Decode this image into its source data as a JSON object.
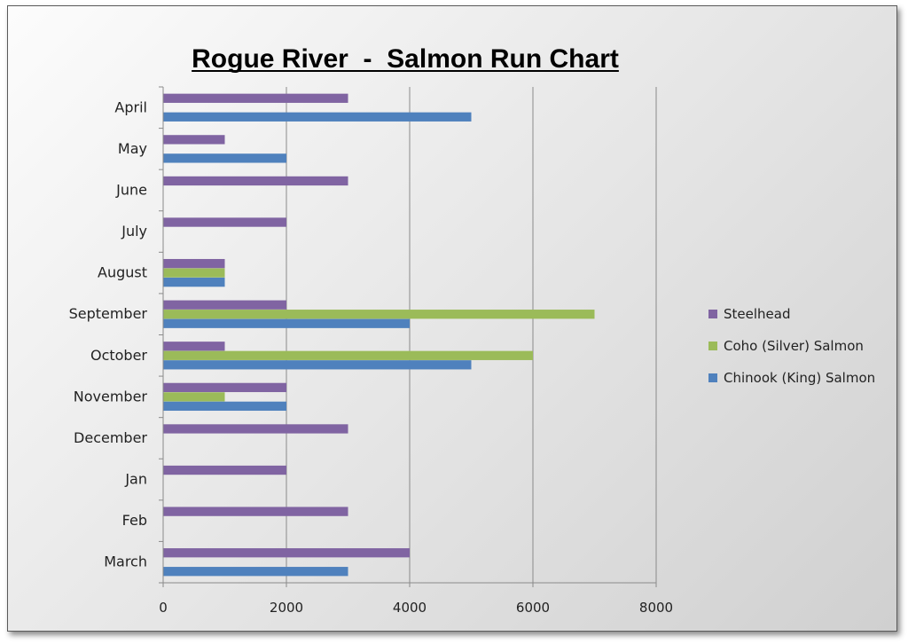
{
  "chart_data": {
    "type": "bar",
    "orientation": "horizontal",
    "title": "Rogue River  -  Salmon Run Chart",
    "xlabel": "",
    "ylabel": "",
    "xlim": [
      0,
      8000
    ],
    "ticks": [
      "0",
      "2000",
      "4000",
      "6000",
      "8000"
    ],
    "grid": true,
    "legend_position": "right",
    "categories": [
      "April",
      "May",
      "June",
      "July",
      "August",
      "September",
      "October",
      "November",
      "December",
      "Jan",
      "Feb",
      "March"
    ],
    "series": [
      {
        "name": "Steelhead",
        "color": "#8064A2",
        "values": [
          3000,
          1000,
          3000,
          2000,
          1000,
          2000,
          1000,
          2000,
          3000,
          2000,
          3000,
          4000
        ]
      },
      {
        "name": "Coho (Silver) Salmon",
        "color": "#9BBB59",
        "values": [
          0,
          0,
          0,
          0,
          1000,
          7000,
          6000,
          1000,
          0,
          0,
          0,
          0
        ]
      },
      {
        "name": "Chinook (King) Salmon",
        "color": "#4F81BD",
        "values": [
          5000,
          2000,
          0,
          0,
          1000,
          4000,
          5000,
          2000,
          0,
          0,
          0,
          3000
        ]
      }
    ]
  }
}
